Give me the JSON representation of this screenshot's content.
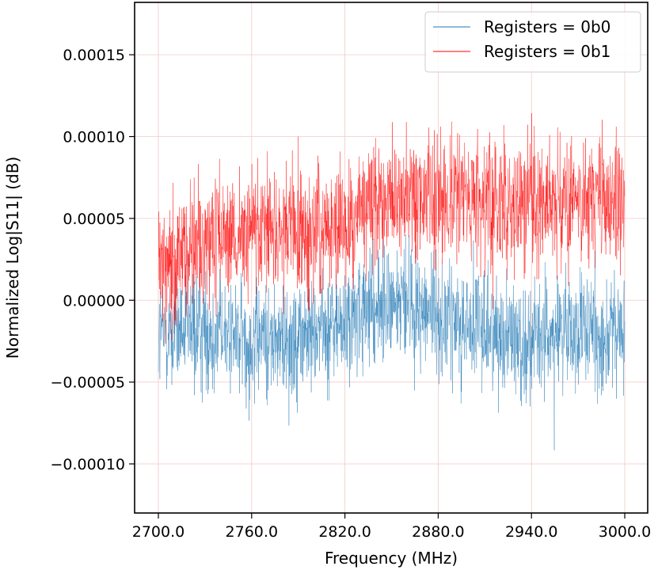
{
  "chart_data": {
    "type": "line",
    "title": "",
    "xlabel": "Frequency (MHz)",
    "ylabel": "Normalized Log|S11| (dB)",
    "xlim": [
      2700.0,
      3000.0
    ],
    "ylim": [
      -0.00013,
      0.000182
    ],
    "xticks": [
      2700.0,
      2760.0,
      2820.0,
      2880.0,
      2940.0,
      3000.0
    ],
    "xtick_labels": [
      "2700.0",
      "2760.0",
      "2820.0",
      "2880.0",
      "2940.0",
      "3000.0"
    ],
    "yticks": [
      -0.0001,
      -5e-05,
      0.0,
      5e-05,
      0.0001,
      0.00015
    ],
    "ytick_labels": [
      "−0.00010",
      "−0.00005",
      "0.00000",
      "0.00005",
      "0.00010",
      "0.00015"
    ],
    "grid": true,
    "legend_position": "top-right",
    "series": [
      {
        "name": "Registers = 0b0",
        "color": "#1f77b4",
        "x": [
          2700,
          2720,
          2740,
          2760,
          2780,
          2800,
          2820,
          2840,
          2860,
          2880,
          2900,
          2920,
          2940,
          2960,
          2980,
          3000
        ],
        "values": [
          -2e-05,
          -2e-05,
          -2e-05,
          -2.5e-05,
          -2.5e-05,
          -2e-05,
          -1.5e-05,
          -5e-06,
          0.0,
          -1e-05,
          -1.5e-05,
          -2e-05,
          -2.5e-05,
          -2e-05,
          -2e-05,
          -2e-05
        ],
        "noise_amplitude": 2.8e-05
      },
      {
        "name": "Registers = 0b1",
        "color": "#ff0000",
        "x": [
          2700,
          2720,
          2740,
          2760,
          2780,
          2800,
          2820,
          2840,
          2860,
          2880,
          2900,
          2920,
          2940,
          2960,
          2980,
          3000
        ],
        "values": [
          2e-05,
          3e-05,
          3.5e-05,
          4e-05,
          3.8e-05,
          4e-05,
          4.8e-05,
          5.8e-05,
          6.5e-05,
          6.2e-05,
          6e-05,
          6e-05,
          6.2e-05,
          5.8e-05,
          6e-05,
          5.8e-05
        ],
        "noise_amplitude": 3e-05
      }
    ]
  }
}
